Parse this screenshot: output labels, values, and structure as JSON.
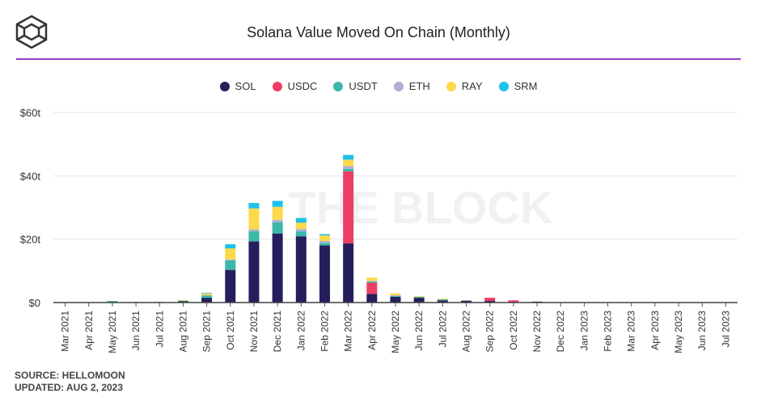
{
  "brand": "THE BLOCK",
  "chart_data": {
    "type": "bar",
    "stacked": true,
    "title": "Solana Value Moved On Chain (Monthly)",
    "xlabel": "",
    "ylabel": "",
    "ylim": [
      0,
      60
    ],
    "yticks": [
      0,
      20,
      40,
      60
    ],
    "ytick_labels": [
      "$0",
      "$20t",
      "$40t",
      "$60t"
    ],
    "grid": true,
    "legend_position": "top-center",
    "categories": [
      "Mar 2021",
      "Apr 2021",
      "May 2021",
      "Jun 2021",
      "Jul 2021",
      "Aug 2021",
      "Sep 2021",
      "Oct 2021",
      "Nov 2021",
      "Dec 2021",
      "Jan 2022",
      "Feb 2022",
      "Mar 2022",
      "Apr 2022",
      "May 2022",
      "Jun 2022",
      "Jul 2022",
      "Aug 2022",
      "Sep 2022",
      "Oct 2022",
      "Nov 2022",
      "Dec 2022",
      "Jan 2023",
      "Feb 2023",
      "Mar 2023",
      "Apr 2023",
      "May 2023",
      "Jun 2023",
      "Jul 2023"
    ],
    "series": [
      {
        "name": "SOL",
        "color": "#241f5c",
        "values": [
          0,
          0,
          0.1,
          0.1,
          0.1,
          0.4,
          1.5,
          10.3,
          19.3,
          21.8,
          20.9,
          18.0,
          18.7,
          2.7,
          1.8,
          1.5,
          0.7,
          0.6,
          0.5,
          0.2,
          0.3,
          0,
          0,
          0,
          0,
          0,
          0,
          0,
          0
        ]
      },
      {
        "name": "USDC",
        "color": "#ee3e65",
        "values": [
          0,
          0,
          0,
          0,
          0,
          0,
          0,
          0,
          0,
          0,
          0,
          0,
          22.7,
          3.6,
          0,
          0,
          0,
          0,
          1.0,
          0.5,
          0,
          0,
          0,
          0,
          0,
          0,
          0,
          0,
          0
        ]
      },
      {
        "name": "USDT",
        "color": "#3ab8a8",
        "values": [
          0,
          0,
          0.4,
          0.1,
          0.1,
          0.2,
          0.7,
          3.0,
          3.2,
          3.5,
          1.6,
          0.8,
          0.8,
          0.4,
          0.3,
          0.3,
          0.3,
          0,
          0,
          0,
          0,
          0,
          0,
          0,
          0,
          0,
          0,
          0,
          0
        ]
      },
      {
        "name": "ETH",
        "color": "#b3acd9",
        "values": [
          0,
          0,
          0,
          0,
          0,
          0,
          0.1,
          0.3,
          0.6,
          0.8,
          0.7,
          0.6,
          0.9,
          0.1,
          0.2,
          0,
          0,
          0,
          0,
          0,
          0,
          0,
          0,
          0,
          0,
          0,
          0,
          0,
          0
        ]
      },
      {
        "name": "RAY",
        "color": "#fbd94a",
        "values": [
          0,
          0,
          0,
          0,
          0,
          0.2,
          0.6,
          3.5,
          6.6,
          4.1,
          2.0,
          1.8,
          2.0,
          1.1,
          0.6,
          0.2,
          0.2,
          0,
          0,
          0,
          0,
          0,
          0,
          0,
          0,
          0,
          0,
          0,
          0
        ]
      },
      {
        "name": "SRM",
        "color": "#1ec1ea",
        "values": [
          0,
          0,
          0,
          0,
          0,
          0,
          0.2,
          1.3,
          1.7,
          1.9,
          1.5,
          0.4,
          1.5,
          0,
          0,
          0,
          0,
          0,
          0,
          0,
          0,
          0,
          0,
          0,
          0,
          0,
          0,
          0,
          0
        ]
      }
    ]
  },
  "footer": {
    "source": "SOURCE: HELLOMOON",
    "updated": "UPDATED: AUG 2, 2023"
  }
}
